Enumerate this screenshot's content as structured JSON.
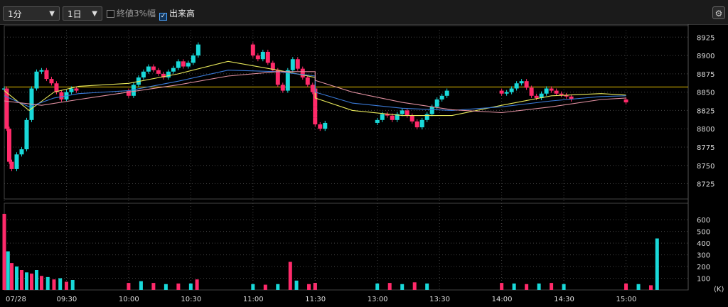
{
  "toolbar": {
    "interval": "1分",
    "period": "1日",
    "option_label": "終値3%幅",
    "option_checked": false,
    "volume_label": "出来高",
    "volume_checked": true
  },
  "icons": {
    "dropdown": "chevron-down-icon",
    "settings": "gear-icon"
  },
  "colors": {
    "up": "#19d9d9",
    "down": "#ff2a6a",
    "ma_short": "#e8e85a",
    "ma_mid": "#3a7ad8",
    "ma_long": "#e090a0",
    "ref_line": "#e6c200"
  },
  "chart_data": [
    {
      "type": "candlestick",
      "ylim": [
        8710,
        8935
      ],
      "y_ticks": [
        8725,
        8750,
        8775,
        8800,
        8825,
        8850,
        8875,
        8900,
        8925
      ],
      "reference_line": 8857,
      "series": [
        {
          "name": "",
          "values": [
            [
              9.0,
              8855
            ],
            [
              9.02,
              8800
            ],
            [
              9.04,
              8755
            ],
            [
              9.06,
              8745
            ],
            [
              9.1,
              8765
            ],
            [
              9.14,
              8772
            ],
            [
              9.18,
              8812
            ],
            [
              9.22,
              8855
            ],
            [
              9.26,
              8878
            ],
            [
              9.3,
              8880
            ],
            [
              9.34,
              8868
            ],
            [
              9.38,
              8862
            ],
            [
              9.42,
              8850
            ],
            [
              9.46,
              8840
            ],
            [
              9.5,
              8850
            ],
            [
              9.54,
              8855
            ],
            [
              9.58,
              8852
            ],
            [
              10.0,
              8845
            ],
            [
              10.04,
              8860
            ],
            [
              10.08,
              8870
            ],
            [
              10.12,
              8878
            ],
            [
              10.16,
              8885
            ],
            [
              10.2,
              8880
            ],
            [
              10.24,
              8875
            ],
            [
              10.28,
              8870
            ],
            [
              10.32,
              8878
            ],
            [
              10.36,
              8883
            ],
            [
              10.4,
              8892
            ],
            [
              10.44,
              8885
            ],
            [
              10.48,
              8890
            ],
            [
              10.52,
              8900
            ],
            [
              10.56,
              8915
            ],
            [
              11.0,
              8900
            ],
            [
              11.04,
              8895
            ],
            [
              11.08,
              8905
            ],
            [
              11.12,
              8890
            ],
            [
              11.16,
              8880
            ],
            [
              11.2,
              8860
            ],
            [
              11.24,
              8852
            ],
            [
              11.28,
              8880
            ],
            [
              11.32,
              8895
            ],
            [
              11.36,
              8882
            ],
            [
              11.4,
              8870
            ],
            [
              11.44,
              8860
            ],
            [
              11.48,
              8850
            ],
            [
              11.52,
              8848
            ],
            [
              11.56,
              8850
            ],
            [
              12.3,
              8855
            ],
            [
              12.34,
              8850
            ],
            [
              12.38,
              8830
            ],
            [
              12.42,
              8820
            ],
            [
              12.46,
              8815
            ],
            [
              12.5,
              8806
            ],
            [
              12.54,
              8800
            ],
            [
              12.58,
              8808
            ],
            [
              13.0,
              8812
            ],
            [
              13.04,
              8820
            ],
            [
              13.08,
              8818
            ],
            [
              13.12,
              8812
            ],
            [
              13.16,
              8820
            ],
            [
              13.2,
              8825
            ],
            [
              13.24,
              8818
            ],
            [
              13.28,
              8810
            ],
            [
              13.32,
              8802
            ],
            [
              13.36,
              8812
            ],
            [
              13.4,
              8820
            ],
            [
              13.44,
              8830
            ],
            [
              13.48,
              8840
            ],
            [
              13.52,
              8845
            ],
            [
              13.56,
              8852
            ],
            [
              14.0,
              8848
            ],
            [
              14.04,
              8850
            ],
            [
              14.08,
              8855
            ],
            [
              14.12,
              8862
            ],
            [
              14.16,
              8865
            ],
            [
              14.2,
              8856
            ],
            [
              14.24,
              8845
            ],
            [
              14.28,
              8842
            ],
            [
              14.32,
              8848
            ],
            [
              14.36,
              8855
            ],
            [
              14.4,
              8852
            ],
            [
              14.44,
              8848
            ],
            [
              14.48,
              8846
            ],
            [
              14.52,
              8844
            ],
            [
              14.56,
              8840
            ],
            [
              15.0,
              8836
            ]
          ]
        },
        {
          "name": "",
          "values": [
            [
              9.0,
              8852
            ],
            [
              9.2,
              8825
            ],
            [
              9.4,
              8850
            ],
            [
              9.6,
              8858
            ],
            [
              10.0,
              8862
            ],
            [
              10.4,
              8875
            ],
            [
              10.8,
              8892
            ],
            [
              11.2,
              8880
            ],
            [
              11.6,
              8870
            ],
            [
              12.4,
              8842
            ],
            [
              12.8,
              8825
            ],
            [
              13.2,
              8818
            ],
            [
              13.6,
              8818
            ],
            [
              14.0,
              8832
            ],
            [
              14.4,
              8845
            ],
            [
              14.8,
              8848
            ],
            [
              15.0,
              8846
            ]
          ]
        },
        {
          "name": "",
          "values": [
            [
              9.0,
              8845
            ],
            [
              9.2,
              8830
            ],
            [
              9.4,
              8842
            ],
            [
              9.6,
              8848
            ],
            [
              10.0,
              8852
            ],
            [
              10.4,
              8865
            ],
            [
              10.8,
              8880
            ],
            [
              11.2,
              8878
            ],
            [
              11.6,
              8872
            ],
            [
              12.4,
              8850
            ],
            [
              12.8,
              8835
            ],
            [
              13.2,
              8828
            ],
            [
              13.6,
              8825
            ],
            [
              14.0,
              8830
            ],
            [
              14.4,
              8838
            ],
            [
              14.8,
              8844
            ],
            [
              15.0,
              8845
            ]
          ]
        },
        {
          "name": "",
          "values": [
            [
              9.0,
              8838
            ],
            [
              9.3,
              8832
            ],
            [
              9.6,
              8840
            ],
            [
              10.0,
              8850
            ],
            [
              10.4,
              8860
            ],
            [
              10.8,
              8872
            ],
            [
              11.2,
              8878
            ],
            [
              11.6,
              8878
            ],
            [
              12.4,
              8866
            ],
            [
              12.8,
              8850
            ],
            [
              13.2,
              8836
            ],
            [
              13.6,
              8826
            ],
            [
              14.0,
              8822
            ],
            [
              14.4,
              8830
            ],
            [
              14.8,
              8840
            ],
            [
              15.0,
              8842
            ]
          ]
        }
      ]
    },
    {
      "type": "bar",
      "ylabel": "(K)",
      "ylim": [
        0,
        680
      ],
      "y_ticks": [
        100,
        200,
        300,
        400,
        500,
        600
      ],
      "x_ticks": [
        "07/28",
        "09:30",
        "10:00",
        "10:30",
        "11:00",
        "11:30",
        "13:00",
        "13:30",
        "14:00",
        "14:30",
        "15:00"
      ],
      "x_tick_times": [
        9.0,
        9.5,
        10.0,
        10.5,
        11.0,
        11.5,
        13.0,
        13.5,
        14.0,
        14.5,
        15.0
      ],
      "bars": [
        {
          "t": 9.0,
          "v": 650
        },
        {
          "t": 9.03,
          "v": 330
        },
        {
          "t": 9.06,
          "v": 230
        },
        {
          "t": 9.1,
          "v": 200
        },
        {
          "t": 9.14,
          "v": 170
        },
        {
          "t": 9.18,
          "v": 150
        },
        {
          "t": 9.22,
          "v": 140
        },
        {
          "t": 9.26,
          "v": 170
        },
        {
          "t": 9.3,
          "v": 120
        },
        {
          "t": 9.35,
          "v": 110
        },
        {
          "t": 9.4,
          "v": 90
        },
        {
          "t": 9.45,
          "v": 100
        },
        {
          "t": 9.5,
          "v": 70
        },
        {
          "t": 9.55,
          "v": 85
        },
        {
          "t": 10.0,
          "v": 60
        },
        {
          "t": 10.1,
          "v": 75
        },
        {
          "t": 10.2,
          "v": 60
        },
        {
          "t": 10.3,
          "v": 50
        },
        {
          "t": 10.4,
          "v": 55
        },
        {
          "t": 10.5,
          "v": 55
        },
        {
          "t": 10.55,
          "v": 90
        },
        {
          "t": 11.0,
          "v": 50
        },
        {
          "t": 11.1,
          "v": 45
        },
        {
          "t": 11.2,
          "v": 50
        },
        {
          "t": 11.3,
          "v": 240
        },
        {
          "t": 11.35,
          "v": 80
        },
        {
          "t": 11.45,
          "v": 50
        },
        {
          "t": 12.4,
          "v": 60
        },
        {
          "t": 12.5,
          "v": 60
        },
        {
          "t": 13.0,
          "v": 55
        },
        {
          "t": 13.1,
          "v": 60
        },
        {
          "t": 13.2,
          "v": 50
        },
        {
          "t": 13.3,
          "v": 65
        },
        {
          "t": 13.4,
          "v": 55
        },
        {
          "t": 14.0,
          "v": 60
        },
        {
          "t": 14.1,
          "v": 55
        },
        {
          "t": 14.2,
          "v": 50
        },
        {
          "t": 14.3,
          "v": 55
        },
        {
          "t": 14.4,
          "v": 60
        },
        {
          "t": 14.5,
          "v": 50
        },
        {
          "t": 15.0,
          "v": 55
        },
        {
          "t": 15.1,
          "v": 50
        },
        {
          "t": 15.2,
          "v": 40
        },
        {
          "t": 15.25,
          "v": 440
        }
      ]
    }
  ]
}
